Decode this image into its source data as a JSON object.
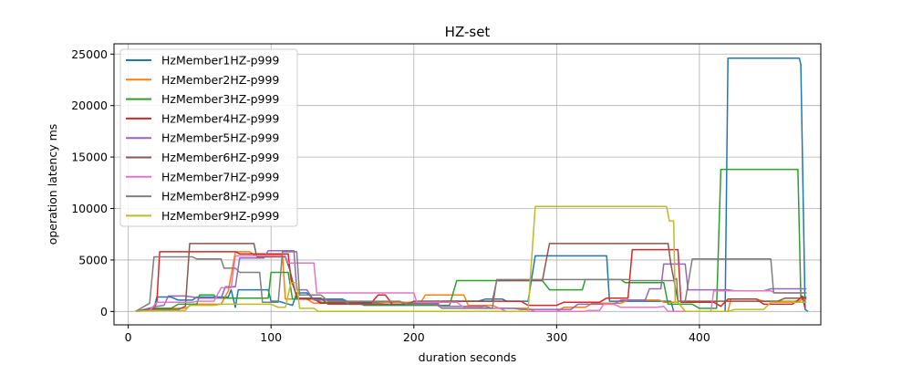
{
  "chart_data": {
    "type": "line",
    "title": "HZ-set",
    "xlabel": "duration seconds",
    "ylabel": "operation latency ms",
    "xlim": [
      -10,
      485
    ],
    "ylim": [
      -1300,
      26000
    ],
    "xticks": [
      0,
      100,
      200,
      300,
      400
    ],
    "yticks": [
      0,
      5000,
      10000,
      15000,
      20000,
      25000
    ],
    "grid": true,
    "legend_position": "top-left",
    "series": [
      {
        "name": "HzMember1HZ-p999",
        "color": "#1f77b4",
        "points": [
          [
            5,
            0
          ],
          [
            12,
            100
          ],
          [
            18,
            300
          ],
          [
            20,
            1400
          ],
          [
            30,
            1400
          ],
          [
            35,
            1100
          ],
          [
            45,
            1100
          ],
          [
            48,
            1400
          ],
          [
            70,
            1400
          ],
          [
            72,
            2100
          ],
          [
            75,
            400
          ],
          [
            77,
            2100
          ],
          [
            98,
            2100
          ],
          [
            100,
            1000
          ],
          [
            105,
            1000
          ],
          [
            110,
            800
          ],
          [
            115,
            600
          ],
          [
            118,
            1800
          ],
          [
            125,
            1800
          ],
          [
            130,
            1200
          ],
          [
            150,
            1200
          ],
          [
            155,
            900
          ],
          [
            200,
            900
          ],
          [
            205,
            1000
          ],
          [
            245,
            1000
          ],
          [
            250,
            1200
          ],
          [
            262,
            1200
          ],
          [
            265,
            1000
          ],
          [
            280,
            1000
          ],
          [
            285,
            5400
          ],
          [
            335,
            5400
          ],
          [
            337,
            1000
          ],
          [
            380,
            1000
          ],
          [
            382,
            0
          ],
          [
            418,
            0
          ],
          [
            420,
            24600
          ],
          [
            470,
            24600
          ],
          [
            471,
            24000
          ],
          [
            474,
            200
          ],
          [
            476,
            0
          ]
        ]
      },
      {
        "name": "HzMember2HZ-p999",
        "color": "#ff7f0e",
        "points": [
          [
            5,
            0
          ],
          [
            20,
            300
          ],
          [
            40,
            300
          ],
          [
            45,
            700
          ],
          [
            65,
            700
          ],
          [
            70,
            2000
          ],
          [
            75,
            5800
          ],
          [
            85,
            5800
          ],
          [
            88,
            5500
          ],
          [
            108,
            5500
          ],
          [
            110,
            1200
          ],
          [
            125,
            1200
          ],
          [
            130,
            800
          ],
          [
            175,
            800
          ],
          [
            180,
            900
          ],
          [
            205,
            900
          ],
          [
            208,
            1600
          ],
          [
            235,
            1600
          ],
          [
            238,
            600
          ],
          [
            255,
            600
          ],
          [
            260,
            300
          ],
          [
            280,
            300
          ],
          [
            285,
            0
          ],
          [
            300,
            0
          ],
          [
            305,
            400
          ],
          [
            320,
            400
          ],
          [
            325,
            800
          ],
          [
            345,
            800
          ],
          [
            350,
            1100
          ],
          [
            372,
            1100
          ],
          [
            375,
            900
          ],
          [
            385,
            900
          ],
          [
            390,
            0
          ],
          [
            420,
            0
          ],
          [
            422,
            1200
          ],
          [
            440,
            1200
          ],
          [
            445,
            1000
          ],
          [
            470,
            1000
          ],
          [
            472,
            1200
          ],
          [
            475,
            1200
          ]
        ]
      },
      {
        "name": "HzMember3HZ-p999",
        "color": "#2ca02c",
        "points": [
          [
            5,
            0
          ],
          [
            15,
            300
          ],
          [
            30,
            300
          ],
          [
            35,
            700
          ],
          [
            48,
            700
          ],
          [
            50,
            1600
          ],
          [
            60,
            1600
          ],
          [
            62,
            1300
          ],
          [
            98,
            1300
          ],
          [
            100,
            3800
          ],
          [
            112,
            3800
          ],
          [
            115,
            1200
          ],
          [
            130,
            1200
          ],
          [
            135,
            900
          ],
          [
            160,
            900
          ],
          [
            165,
            600
          ],
          [
            225,
            600
          ],
          [
            230,
            3000
          ],
          [
            290,
            3000
          ],
          [
            295,
            2100
          ],
          [
            318,
            2100
          ],
          [
            320,
            3100
          ],
          [
            345,
            3100
          ],
          [
            348,
            2800
          ],
          [
            375,
            2800
          ],
          [
            378,
            700
          ],
          [
            395,
            700
          ],
          [
            400,
            300
          ],
          [
            412,
            300
          ],
          [
            415,
            13800
          ],
          [
            469,
            13800
          ],
          [
            471,
            1400
          ],
          [
            475,
            1400
          ]
        ]
      },
      {
        "name": "HzMember4HZ-p999",
        "color": "#d62728",
        "points": [
          [
            5,
            0
          ],
          [
            18,
            300
          ],
          [
            20,
            900
          ],
          [
            22,
            5800
          ],
          [
            75,
            5800
          ],
          [
            78,
            5600
          ],
          [
            112,
            5600
          ],
          [
            114,
            3100
          ],
          [
            118,
            1500
          ],
          [
            120,
            1200
          ],
          [
            130,
            1200
          ],
          [
            135,
            800
          ],
          [
            170,
            800
          ],
          [
            175,
            1600
          ],
          [
            180,
            1600
          ],
          [
            185,
            700
          ],
          [
            215,
            700
          ],
          [
            220,
            1000
          ],
          [
            275,
            1000
          ],
          [
            280,
            600
          ],
          [
            300,
            600
          ],
          [
            305,
            900
          ],
          [
            330,
            900
          ],
          [
            335,
            1300
          ],
          [
            350,
            1300
          ],
          [
            353,
            6000
          ],
          [
            385,
            6000
          ],
          [
            387,
            900
          ],
          [
            410,
            900
          ],
          [
            415,
            500
          ],
          [
            420,
            1200
          ],
          [
            440,
            1200
          ],
          [
            445,
            700
          ],
          [
            465,
            700
          ],
          [
            470,
            1200
          ],
          [
            472,
            1500
          ],
          [
            474,
            300
          ]
        ]
      },
      {
        "name": "HzMember5HZ-p999",
        "color": "#9467bd",
        "points": [
          [
            5,
            0
          ],
          [
            20,
            500
          ],
          [
            25,
            600
          ],
          [
            28,
            1500
          ],
          [
            40,
            1500
          ],
          [
            50,
            1300
          ],
          [
            65,
            1300
          ],
          [
            68,
            2400
          ],
          [
            75,
            2400
          ],
          [
            78,
            5200
          ],
          [
            95,
            5200
          ],
          [
            98,
            5900
          ],
          [
            116,
            5900
          ],
          [
            118,
            2100
          ],
          [
            125,
            2100
          ],
          [
            130,
            1100
          ],
          [
            150,
            1100
          ],
          [
            155,
            700
          ],
          [
            190,
            700
          ],
          [
            195,
            800
          ],
          [
            215,
            800
          ],
          [
            220,
            500
          ],
          [
            250,
            500
          ],
          [
            255,
            300
          ],
          [
            270,
            300
          ],
          [
            275,
            200
          ],
          [
            310,
            200
          ],
          [
            315,
            700
          ],
          [
            340,
            700
          ],
          [
            345,
            1100
          ],
          [
            362,
            1100
          ],
          [
            365,
            2200
          ],
          [
            373,
            2200
          ],
          [
            375,
            4600
          ],
          [
            390,
            4600
          ],
          [
            392,
            2100
          ],
          [
            420,
            2100
          ],
          [
            425,
            2000
          ],
          [
            445,
            2000
          ],
          [
            450,
            2200
          ],
          [
            475,
            2200
          ]
        ]
      },
      {
        "name": "HzMember6HZ-p999",
        "color": "#8c564b",
        "points": [
          [
            5,
            0
          ],
          [
            15,
            200
          ],
          [
            35,
            200
          ],
          [
            40,
            500
          ],
          [
            43,
            6600
          ],
          [
            88,
            6600
          ],
          [
            90,
            5300
          ],
          [
            110,
            5300
          ],
          [
            113,
            4100
          ],
          [
            118,
            1300
          ],
          [
            135,
            1300
          ],
          [
            140,
            700
          ],
          [
            180,
            700
          ],
          [
            195,
            700
          ],
          [
            200,
            1000
          ],
          [
            255,
            1000
          ],
          [
            258,
            3000
          ],
          [
            290,
            3000
          ],
          [
            295,
            6600
          ],
          [
            378,
            6600
          ],
          [
            380,
            4600
          ],
          [
            385,
            1000
          ],
          [
            455,
            1000
          ],
          [
            460,
            1300
          ],
          [
            475,
            1300
          ]
        ]
      },
      {
        "name": "HzMember7HZ-p999",
        "color": "#e377c2",
        "points": [
          [
            5,
            0
          ],
          [
            15,
            100
          ],
          [
            20,
            900
          ],
          [
            45,
            900
          ],
          [
            48,
            1000
          ],
          [
            60,
            1000
          ],
          [
            65,
            2300
          ],
          [
            72,
            2300
          ],
          [
            75,
            5400
          ],
          [
            110,
            5400
          ],
          [
            112,
            4700
          ],
          [
            130,
            4700
          ],
          [
            132,
            1800
          ],
          [
            200,
            1800
          ],
          [
            202,
            900
          ],
          [
            230,
            900
          ],
          [
            235,
            400
          ],
          [
            245,
            400
          ],
          [
            250,
            300
          ],
          [
            260,
            300
          ],
          [
            265,
            0
          ],
          [
            320,
            0
          ],
          [
            322,
            100
          ],
          [
            330,
            100
          ],
          [
            333,
            700
          ],
          [
            340,
            700
          ],
          [
            345,
            400
          ],
          [
            370,
            400
          ],
          [
            375,
            500
          ],
          [
            378,
            0
          ],
          [
            408,
            0
          ],
          [
            410,
            2000
          ],
          [
            450,
            2000
          ],
          [
            453,
            1800
          ],
          [
            475,
            1800
          ]
        ]
      },
      {
        "name": "HzMember8HZ-p999",
        "color": "#7f7f7f",
        "points": [
          [
            5,
            0
          ],
          [
            15,
            800
          ],
          [
            18,
            5300
          ],
          [
            45,
            5300
          ],
          [
            48,
            5100
          ],
          [
            65,
            5100
          ],
          [
            67,
            4200
          ],
          [
            75,
            4200
          ],
          [
            78,
            3800
          ],
          [
            92,
            3800
          ],
          [
            94,
            900
          ],
          [
            105,
            900
          ],
          [
            108,
            5800
          ],
          [
            118,
            5800
          ],
          [
            120,
            1600
          ],
          [
            135,
            1600
          ],
          [
            140,
            1000
          ],
          [
            190,
            1000
          ],
          [
            195,
            700
          ],
          [
            215,
            700
          ],
          [
            220,
            300
          ],
          [
            255,
            300
          ],
          [
            258,
            3100
          ],
          [
            350,
            3100
          ],
          [
            352,
            3000
          ],
          [
            382,
            3000
          ],
          [
            384,
            3200
          ],
          [
            385,
            1000
          ],
          [
            390,
            1000
          ],
          [
            395,
            5100
          ],
          [
            450,
            5100
          ],
          [
            452,
            1800
          ],
          [
            475,
            1800
          ]
        ]
      },
      {
        "name": "HzMember9HZ-p999",
        "color": "#bcbd22",
        "points": [
          [
            5,
            0
          ],
          [
            20,
            100
          ],
          [
            40,
            100
          ],
          [
            43,
            600
          ],
          [
            60,
            600
          ],
          [
            65,
            700
          ],
          [
            100,
            700
          ],
          [
            105,
            400
          ],
          [
            110,
            400
          ],
          [
            114,
            2800
          ],
          [
            118,
            2800
          ],
          [
            120,
            300
          ],
          [
            130,
            300
          ],
          [
            133,
            0
          ],
          [
            280,
            0
          ],
          [
            285,
            10200
          ],
          [
            377,
            10200
          ],
          [
            379,
            8800
          ],
          [
            382,
            8800
          ],
          [
            383,
            900
          ],
          [
            385,
            900
          ],
          [
            390,
            0
          ],
          [
            420,
            0
          ],
          [
            425,
            200
          ],
          [
            445,
            200
          ],
          [
            450,
            900
          ],
          [
            475,
            900
          ]
        ]
      }
    ]
  }
}
